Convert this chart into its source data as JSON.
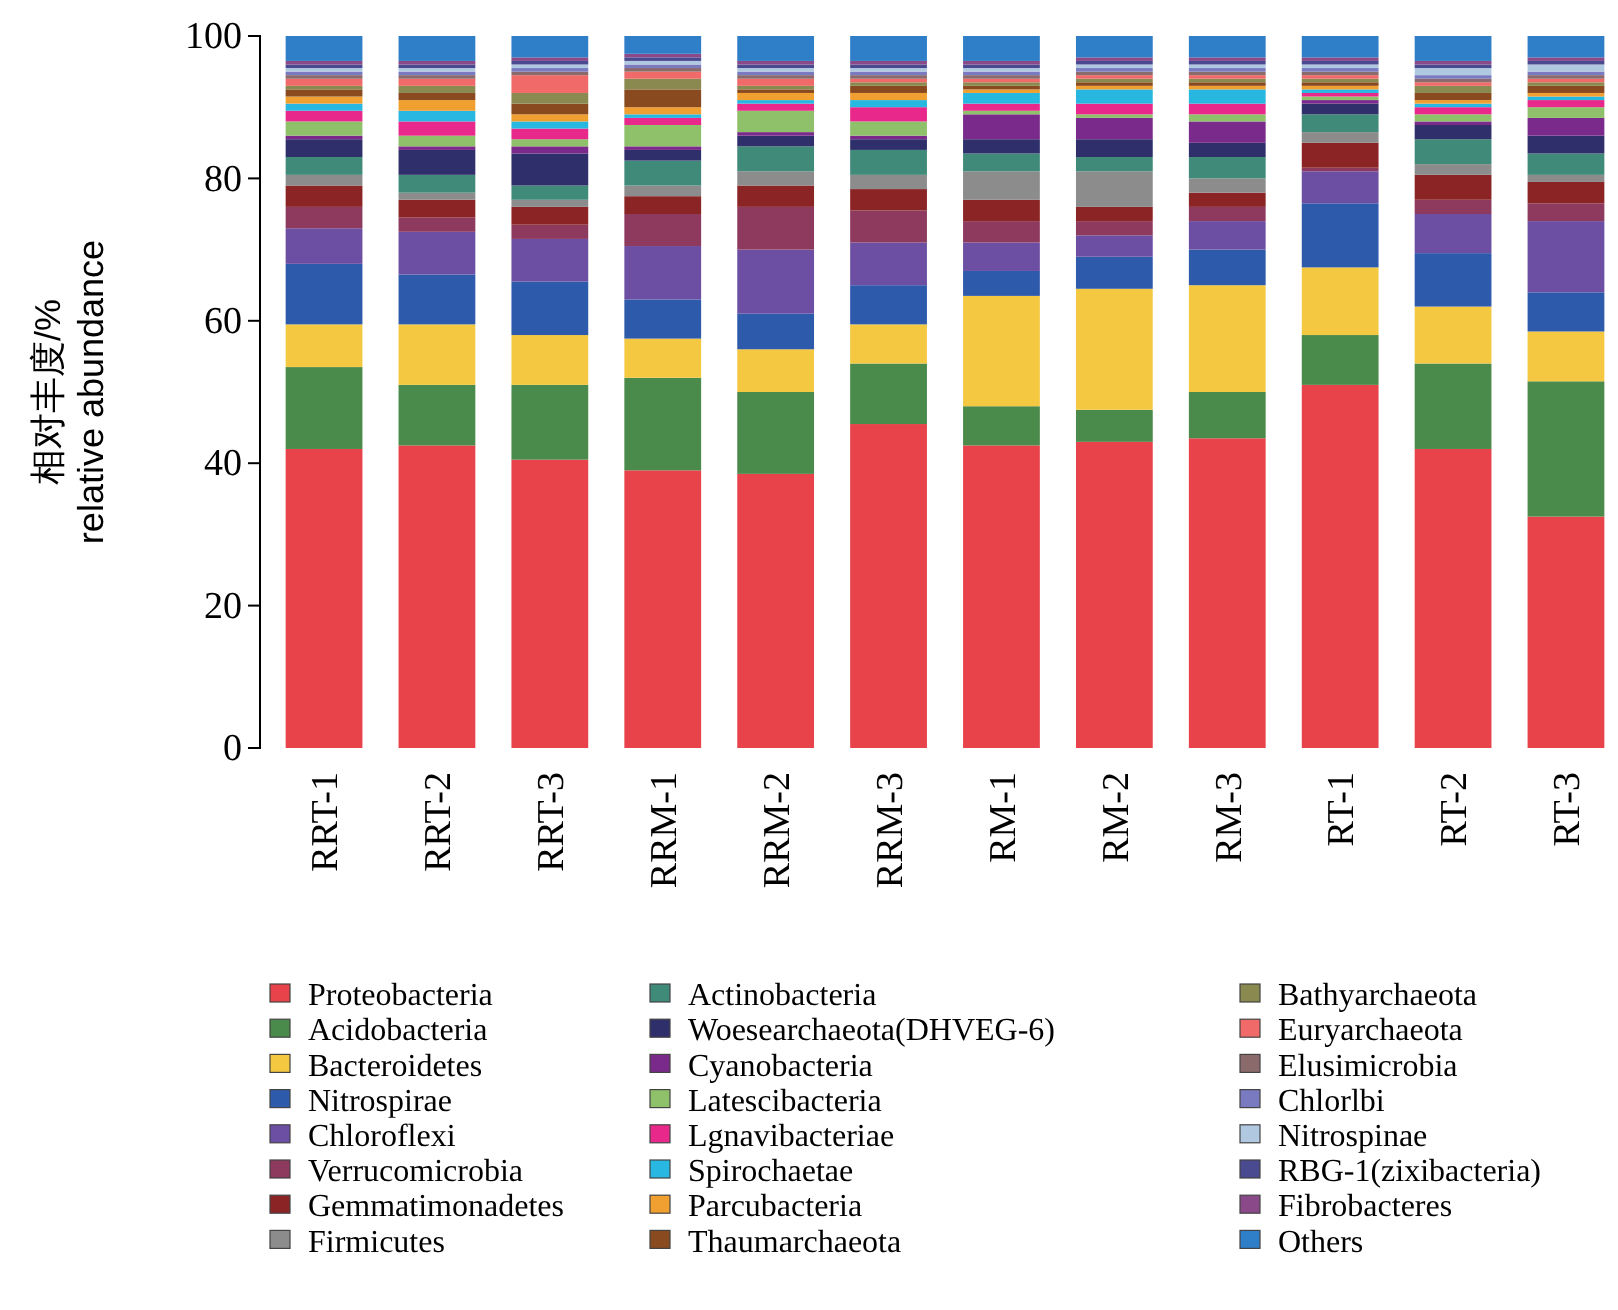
{
  "chart_data": {
    "type": "bar",
    "stacked": true,
    "ylabel": "相对丰度/%\nrelative abundance",
    "categories": [
      "RRT-1",
      "RRT-2",
      "RRT-3",
      "RRM-1",
      "RRM-2",
      "RRM-3",
      "RM-1",
      "RM-2",
      "RM-3",
      "RT-1",
      "RT-2",
      "RT-3"
    ],
    "ylim": [
      0,
      100
    ],
    "yticks": [
      0,
      20,
      40,
      60,
      80,
      100
    ],
    "grid": false,
    "legend": "bottom",
    "series": [
      {
        "name": "Proteobacteria",
        "color": "#e8434a",
        "values": [
          42,
          42.5,
          40.5,
          39,
          38.5,
          45.5,
          42.5,
          43,
          43.5,
          51,
          42,
          32.5
        ]
      },
      {
        "name": "Acidobacteria",
        "color": "#4a8a4a",
        "values": [
          11.5,
          8.5,
          10.5,
          13,
          11.5,
          8.5,
          5.5,
          4.5,
          6.5,
          7,
          12,
          19
        ]
      },
      {
        "name": "Bacteroidetes",
        "color": "#f5c842",
        "values": [
          6,
          8.5,
          7,
          5.5,
          6,
          5.5,
          15.5,
          17,
          15,
          9.5,
          8,
          7
        ]
      },
      {
        "name": "Nitrospirae",
        "color": "#2e5aab",
        "values": [
          8.5,
          7,
          7.5,
          5.5,
          5,
          5.5,
          3.5,
          4.5,
          5,
          9,
          7.5,
          5.5
        ]
      },
      {
        "name": "Chloroflexi",
        "color": "#6c4fa3",
        "values": [
          5,
          6,
          6,
          7.5,
          9,
          6,
          4,
          3,
          4,
          4.5,
          5.5,
          10
        ]
      },
      {
        "name": "Verrucomicrobia",
        "color": "#8e3a5e",
        "values": [
          3,
          2,
          2,
          4.5,
          6,
          4.5,
          3,
          2,
          2,
          0.5,
          2,
          2.5
        ]
      },
      {
        "name": "Gemmatimonadetes",
        "color": "#8b2525",
        "values": [
          3,
          2.5,
          2.5,
          2.5,
          3,
          3,
          3,
          2,
          2,
          3.5,
          3.5,
          3
        ]
      },
      {
        "name": "Firmicutes",
        "color": "#8c8c8c",
        "values": [
          1.5,
          1,
          1,
          1.5,
          2,
          2,
          4,
          5,
          2,
          1.5,
          1.5,
          1
        ]
      },
      {
        "name": "Actinobacteria",
        "color": "#3f8a78",
        "values": [
          2.5,
          2.5,
          2,
          3.5,
          3.5,
          3.5,
          2.5,
          2,
          3,
          2.5,
          3.5,
          3
        ]
      },
      {
        "name": "Woesearchaeota(DHVEG-6)",
        "color": "#2f2f6b",
        "values": [
          2.5,
          3.5,
          4.5,
          1.5,
          1.5,
          1.5,
          2,
          2.5,
          2,
          1.5,
          2,
          2.5
        ]
      },
      {
        "name": "Cyanobacteria",
        "color": "#7a2a8a",
        "values": [
          0.5,
          0.5,
          1,
          0.5,
          0.5,
          0.5,
          3.5,
          3,
          3,
          0.5,
          0.5,
          2.5
        ]
      },
      {
        "name": "Latescibacteria",
        "color": "#8fc06a",
        "values": [
          2,
          1.5,
          1,
          3,
          3,
          2,
          0.5,
          0.5,
          1,
          0.5,
          1,
          1.5
        ]
      },
      {
        "name": "Lgnavibacteriae",
        "color": "#e8288a",
        "values": [
          1.5,
          2,
          1.5,
          1,
          1,
          2,
          1,
          1.5,
          1.5,
          0.5,
          1,
          1
        ]
      },
      {
        "name": "Spirochaetae",
        "color": "#27b7e0",
        "values": [
          1,
          1.5,
          1,
          0.5,
          0.5,
          1,
          1.5,
          2,
          2,
          0.5,
          0.5,
          0.5
        ]
      },
      {
        "name": "Parcubacteria",
        "color": "#f0a030",
        "values": [
          1,
          1.5,
          1,
          1,
          1,
          1,
          0.5,
          0.5,
          0.5,
          0.5,
          0.5,
          0.5
        ]
      },
      {
        "name": "Thaumarchaeota",
        "color": "#8a4a20",
        "values": [
          1,
          1,
          1.5,
          2.5,
          0.5,
          1,
          0.5,
          0.5,
          0.5,
          0.5,
          1,
          1
        ]
      },
      {
        "name": "Bathyarchaeota",
        "color": "#8a8a50",
        "values": [
          0.5,
          1,
          1.5,
          1.5,
          0.5,
          0.5,
          0.5,
          0.5,
          0.5,
          0.5,
          1,
          0.5
        ]
      },
      {
        "name": "Euryarchaeota",
        "color": "#f06a6a",
        "values": [
          1,
          1,
          2.5,
          1,
          1,
          0.5,
          0.5,
          0.5,
          0.5,
          0.5,
          0.5,
          0.5
        ]
      },
      {
        "name": "Elusimicrobia",
        "color": "#8a6a6a",
        "values": [
          0.5,
          0.5,
          0.5,
          0.5,
          0.5,
          0.5,
          0.5,
          0.5,
          0.5,
          0.5,
          0.5,
          0.5
        ]
      },
      {
        "name": "Chlorlbi",
        "color": "#7a7ac0",
        "values": [
          0.5,
          0.5,
          0.5,
          0.5,
          0.5,
          0.5,
          0.5,
          0.5,
          0.5,
          0.5,
          0.5,
          0.5
        ]
      },
      {
        "name": "Nitrospinae",
        "color": "#b0c8e0",
        "values": [
          0.5,
          0.5,
          0.5,
          0.5,
          0.5,
          0.5,
          0.5,
          0.5,
          0.5,
          0.5,
          1,
          1
        ]
      },
      {
        "name": "RBG-1(zixibacteria)",
        "color": "#4a4a90",
        "values": [
          0.5,
          0.5,
          0.5,
          0.5,
          0.5,
          0.5,
          0.5,
          0.5,
          0.5,
          0.5,
          0.5,
          0.5
        ]
      },
      {
        "name": "Fibrobacteres",
        "color": "#8a4a8a",
        "values": [
          0.5,
          0.5,
          0.5,
          0.5,
          0.5,
          0.5,
          0.5,
          0.5,
          0.5,
          0.5,
          0.5,
          0.5
        ]
      },
      {
        "name": "Others",
        "color": "#2e7ec8",
        "values": [
          3.5,
          3.5,
          3,
          2.5,
          3.5,
          3.5,
          3.5,
          3,
          3,
          3,
          3.5,
          3
        ]
      }
    ]
  }
}
